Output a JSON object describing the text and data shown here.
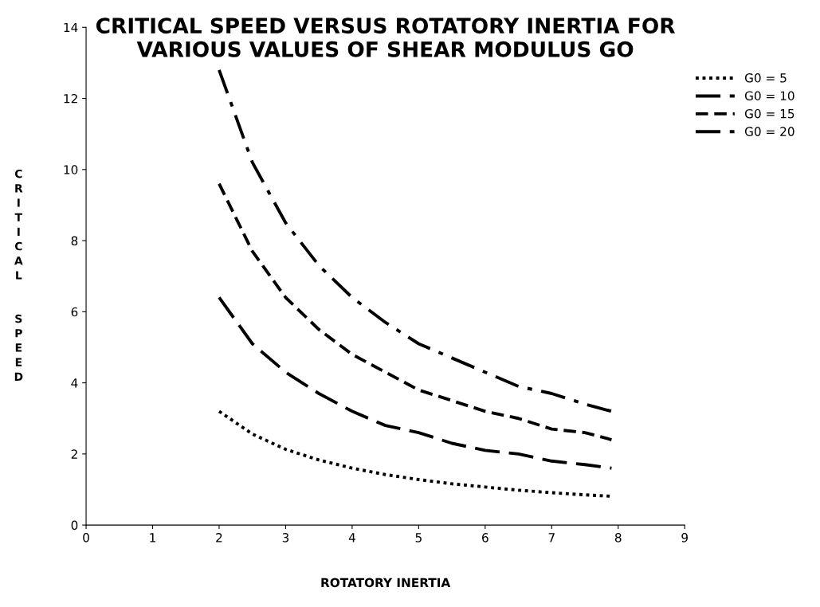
{
  "chart_data": {
    "type": "line",
    "title": "CRITICAL SPEED VERSUS ROTATORY INERTIA FOR\nVARIOUS VALUES OF SHEAR MODULUS GO",
    "xlabel": "ROTATORY INERTIA",
    "ylabel": "CRITICAL  SPEED",
    "x": [
      2,
      2.5,
      3,
      3.5,
      4,
      4.5,
      5,
      5.5,
      6,
      6.5,
      7,
      7.5,
      7.9
    ],
    "series": [
      {
        "name": "G0 = 5",
        "color": "#000000",
        "line_style": "dotted",
        "values": [
          3.2,
          2.56,
          2.13,
          1.83,
          1.6,
          1.42,
          1.28,
          1.16,
          1.07,
          0.98,
          0.91,
          0.85,
          0.81
        ]
      },
      {
        "name": "G0 = 10",
        "color": "#000000",
        "line_style": "long dashed",
        "values": [
          6.4,
          5.1,
          4.3,
          3.7,
          3.2,
          2.8,
          2.6,
          2.3,
          2.1,
          2.0,
          1.8,
          1.7,
          1.6
        ]
      },
      {
        "name": "G0 = 15",
        "color": "#000000",
        "line_style": "dashed",
        "values": [
          9.6,
          7.7,
          6.4,
          5.5,
          4.8,
          4.3,
          3.8,
          3.5,
          3.2,
          3.0,
          2.7,
          2.6,
          2.4
        ]
      },
      {
        "name": "G0 = 20",
        "color": "#000000",
        "line_style": "dash-dot",
        "values": [
          12.8,
          10.2,
          8.5,
          7.3,
          6.4,
          5.7,
          5.1,
          4.7,
          4.3,
          3.9,
          3.7,
          3.4,
          3.2
        ]
      }
    ],
    "xlim": [
      0,
      9
    ],
    "xticks": [
      0,
      1,
      2,
      3,
      4,
      5,
      6,
      7,
      8,
      9
    ],
    "ylim": [
      0,
      14
    ],
    "yticks": [
      0,
      2,
      4,
      6,
      8,
      10,
      12,
      14
    ],
    "legend": "top right",
    "marker": "none"
  }
}
